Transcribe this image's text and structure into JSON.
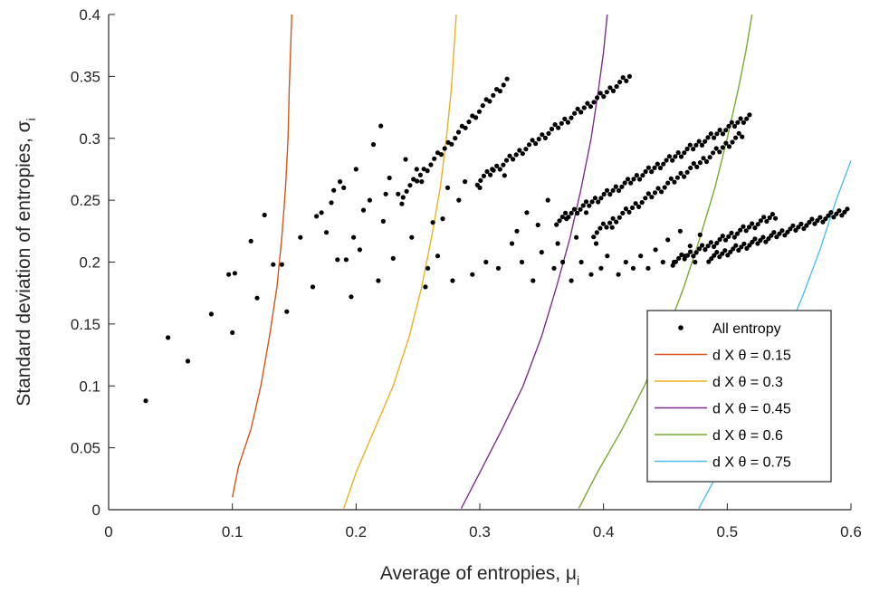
{
  "chart_data": {
    "type": "scatter",
    "xlabel": "Average of entropies, μ",
    "xlabel_sub": "i",
    "ylabel": "Standard deviation of entropies, σ",
    "ylabel_sub": "i",
    "xlim": [
      0,
      0.6
    ],
    "ylim": [
      0,
      0.4
    ],
    "x_ticks": [
      "0",
      "0.1",
      "0.2",
      "0.3",
      "0.4",
      "0.5",
      "0.6"
    ],
    "y_ticks": [
      "0",
      "0.05",
      "0.1",
      "0.15",
      "0.2",
      "0.25",
      "0.3",
      "0.35",
      "0.4"
    ],
    "grid": false,
    "legend_position": "bottom-right",
    "scatter_series": {
      "name": "All entropy",
      "color": "#000000",
      "points": [
        [
          0.03,
          0.088
        ],
        [
          0.048,
          0.139
        ],
        [
          0.064,
          0.12
        ],
        [
          0.083,
          0.158
        ],
        [
          0.097,
          0.19
        ],
        [
          0.1,
          0.143
        ],
        [
          0.102,
          0.191
        ],
        [
          0.115,
          0.217
        ],
        [
          0.12,
          0.171
        ],
        [
          0.126,
          0.238
        ],
        [
          0.133,
          0.198
        ],
        [
          0.14,
          0.198
        ],
        [
          0.144,
          0.16
        ],
        [
          0.155,
          0.22
        ],
        [
          0.165,
          0.18
        ],
        [
          0.168,
          0.237
        ],
        [
          0.172,
          0.24
        ],
        [
          0.176,
          0.224
        ],
        [
          0.18,
          0.248
        ],
        [
          0.182,
          0.258
        ],
        [
          0.185,
          0.202
        ],
        [
          0.187,
          0.265
        ],
        [
          0.19,
          0.26
        ],
        [
          0.192,
          0.202
        ],
        [
          0.196,
          0.172
        ],
        [
          0.198,
          0.22
        ],
        [
          0.2,
          0.275
        ],
        [
          0.203,
          0.21
        ],
        [
          0.206,
          0.242
        ],
        [
          0.211,
          0.25
        ],
        [
          0.214,
          0.295
        ],
        [
          0.218,
          0.185
        ],
        [
          0.22,
          0.31
        ],
        [
          0.222,
          0.233
        ],
        [
          0.224,
          0.255
        ],
        [
          0.227,
          0.268
        ],
        [
          0.23,
          0.203
        ],
        [
          0.234,
          0.255
        ],
        [
          0.237,
          0.247
        ],
        [
          0.24,
          0.283
        ],
        [
          0.245,
          0.22
        ],
        [
          0.249,
          0.275
        ],
        [
          0.253,
          0.265
        ],
        [
          0.256,
          0.18
        ],
        [
          0.258,
          0.195
        ],
        [
          0.262,
          0.232
        ],
        [
          0.266,
          0.205
        ],
        [
          0.27,
          0.235
        ],
        [
          0.274,
          0.26
        ],
        [
          0.278,
          0.185
        ],
        [
          0.283,
          0.25
        ],
        [
          0.288,
          0.265
        ],
        [
          0.294,
          0.19
        ],
        [
          0.3,
          0.26
        ],
        [
          0.305,
          0.2
        ],
        [
          0.31,
          0.275
        ],
        [
          0.315,
          0.195
        ],
        [
          0.32,
          0.27
        ],
        [
          0.326,
          0.215
        ],
        [
          0.33,
          0.225
        ],
        [
          0.334,
          0.2
        ],
        [
          0.338,
          0.24
        ],
        [
          0.343,
          0.185
        ],
        [
          0.347,
          0.23
        ],
        [
          0.35,
          0.208
        ],
        [
          0.355,
          0.25
        ],
        [
          0.36,
          0.195
        ],
        [
          0.363,
          0.215
        ],
        [
          0.367,
          0.2
        ],
        [
          0.37,
          0.235
        ],
        [
          0.374,
          0.185
        ],
        [
          0.378,
          0.22
        ],
        [
          0.382,
          0.2
        ],
        [
          0.386,
          0.24
        ],
        [
          0.39,
          0.19
        ],
        [
          0.394,
          0.215
        ],
        [
          0.398,
          0.195
        ],
        [
          0.403,
          0.205
        ],
        [
          0.407,
          0.228
        ],
        [
          0.412,
          0.19
        ],
        [
          0.418,
          0.2
        ],
        [
          0.424,
          0.195
        ],
        [
          0.43,
          0.205
        ],
        [
          0.436,
          0.195
        ],
        [
          0.442,
          0.21
        ],
        [
          0.448,
          0.2
        ],
        [
          0.452,
          0.218
        ],
        [
          0.457,
          0.2
        ],
        [
          0.462,
          0.225
        ],
        [
          0.466,
          0.205
        ],
        [
          0.47,
          0.213
        ],
        [
          0.474,
          0.2
        ],
        [
          0.478,
          0.222
        ]
      ],
      "bands": [
        {
          "x0": 0.238,
          "y0": 0.255,
          "x1": 0.322,
          "y1": 0.347,
          "step": 0.0028
        },
        {
          "x0": 0.298,
          "y0": 0.265,
          "x1": 0.421,
          "y1": 0.35,
          "step": 0.0026
        },
        {
          "x0": 0.362,
          "y0": 0.233,
          "x1": 0.518,
          "y1": 0.318,
          "step": 0.0024
        },
        {
          "x0": 0.392,
          "y0": 0.223,
          "x1": 0.512,
          "y1": 0.303,
          "step": 0.0026
        },
        {
          "x0": 0.456,
          "y0": 0.2,
          "x1": 0.539,
          "y1": 0.238,
          "step": 0.0024
        },
        {
          "x0": 0.485,
          "y0": 0.203,
          "x1": 0.597,
          "y1": 0.242,
          "step": 0.0022
        }
      ]
    },
    "series": [
      {
        "name": "d X θ = 0.15",
        "color": "#D95319",
        "points": [
          [
            0.1,
            0.01
          ],
          [
            0.105,
            0.035
          ],
          [
            0.115,
            0.065
          ],
          [
            0.123,
            0.1
          ],
          [
            0.13,
            0.14
          ],
          [
            0.136,
            0.18
          ],
          [
            0.14,
            0.22
          ],
          [
            0.143,
            0.26
          ],
          [
            0.145,
            0.3
          ],
          [
            0.146,
            0.34
          ],
          [
            0.147,
            0.37
          ],
          [
            0.148,
            0.4
          ]
        ]
      },
      {
        "name": "d X θ = 0.3",
        "color": "#EDB120",
        "points": [
          [
            0.19,
            0.001
          ],
          [
            0.2,
            0.03
          ],
          [
            0.215,
            0.065
          ],
          [
            0.23,
            0.1
          ],
          [
            0.243,
            0.14
          ],
          [
            0.253,
            0.18
          ],
          [
            0.261,
            0.22
          ],
          [
            0.268,
            0.26
          ],
          [
            0.273,
            0.3
          ],
          [
            0.277,
            0.34
          ],
          [
            0.279,
            0.37
          ],
          [
            0.281,
            0.4
          ]
        ]
      },
      {
        "name": "d X θ = 0.45",
        "color": "#7E2F8E",
        "points": [
          [
            0.285,
            0.001
          ],
          [
            0.3,
            0.03
          ],
          [
            0.318,
            0.065
          ],
          [
            0.335,
            0.1
          ],
          [
            0.35,
            0.14
          ],
          [
            0.362,
            0.18
          ],
          [
            0.373,
            0.22
          ],
          [
            0.382,
            0.26
          ],
          [
            0.39,
            0.3
          ],
          [
            0.396,
            0.34
          ],
          [
            0.4,
            0.37
          ],
          [
            0.403,
            0.4
          ]
        ]
      },
      {
        "name": "d X θ = 0.6",
        "color": "#77AC30",
        "points": [
          [
            0.38,
            0.001
          ],
          [
            0.395,
            0.03
          ],
          [
            0.415,
            0.065
          ],
          [
            0.433,
            0.1
          ],
          [
            0.45,
            0.14
          ],
          [
            0.465,
            0.18
          ],
          [
            0.478,
            0.22
          ],
          [
            0.49,
            0.26
          ],
          [
            0.5,
            0.3
          ],
          [
            0.509,
            0.34
          ],
          [
            0.515,
            0.37
          ],
          [
            0.52,
            0.4
          ]
        ]
      },
      {
        "name": "d X θ = 0.75",
        "color": "#4DBEEE",
        "points": [
          [
            0.477,
            0.001
          ],
          [
            0.49,
            0.025
          ],
          [
            0.507,
            0.055
          ],
          [
            0.525,
            0.09
          ],
          [
            0.543,
            0.13
          ],
          [
            0.56,
            0.17
          ],
          [
            0.575,
            0.21
          ],
          [
            0.588,
            0.25
          ],
          [
            0.6,
            0.282
          ]
        ]
      }
    ],
    "legend": [
      {
        "label": "All entropy",
        "kind": "marker",
        "color": "#000000"
      },
      {
        "label": "d X θ = 0.15",
        "kind": "line",
        "color": "#D95319"
      },
      {
        "label": "d X θ = 0.3",
        "kind": "line",
        "color": "#EDB120"
      },
      {
        "label": "d X θ = 0.45",
        "kind": "line",
        "color": "#7E2F8E"
      },
      {
        "label": "d X θ = 0.6",
        "kind": "line",
        "color": "#77AC30"
      },
      {
        "label": "d X θ = 0.75",
        "kind": "line",
        "color": "#4DBEEE"
      }
    ]
  }
}
